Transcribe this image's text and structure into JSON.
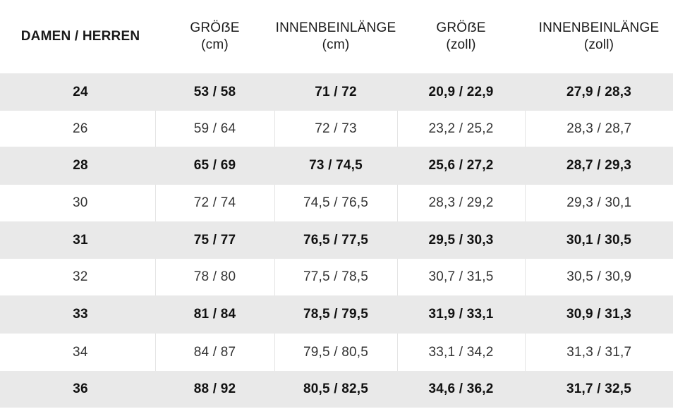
{
  "headers": [
    {
      "line1": "DAMEN / HERREN",
      "line2": ""
    },
    {
      "line1": "GRÖẞE",
      "line2": "(cm)"
    },
    {
      "line1": "INNENBEINLÄNGE",
      "line2": "(cm)"
    },
    {
      "line1": "GRÖẞE",
      "line2": "(zoll)"
    },
    {
      "line1": "INNENBEINLÄNGE",
      "line2": "(zoll)"
    }
  ],
  "rows": [
    {
      "size": "24",
      "groesse_cm": "53 / 58",
      "innenbein_cm": "71 / 72",
      "groesse_zoll": "20,9 / 22,9",
      "innenbein_zoll": "27,9 / 28,3"
    },
    {
      "size": "26",
      "groesse_cm": "59 / 64",
      "innenbein_cm": "72 / 73",
      "groesse_zoll": "23,2 / 25,2",
      "innenbein_zoll": "28,3 / 28,7"
    },
    {
      "size": "28",
      "groesse_cm": "65 / 69",
      "innenbein_cm": "73 / 74,5",
      "groesse_zoll": "25,6 / 27,2",
      "innenbein_zoll": "28,7 / 29,3"
    },
    {
      "size": "30",
      "groesse_cm": "72 / 74",
      "innenbein_cm": "74,5 / 76,5",
      "groesse_zoll": "28,3 / 29,2",
      "innenbein_zoll": "29,3 / 30,1"
    },
    {
      "size": "31",
      "groesse_cm": "75 / 77",
      "innenbein_cm": "76,5 / 77,5",
      "groesse_zoll": "29,5 / 30,3",
      "innenbein_zoll": "30,1 / 30,5"
    },
    {
      "size": "32",
      "groesse_cm": "78 / 80",
      "innenbein_cm": "77,5 / 78,5",
      "groesse_zoll": "30,7 / 31,5",
      "innenbein_zoll": "30,5 / 30,9"
    },
    {
      "size": "33",
      "groesse_cm": "81 / 84",
      "innenbein_cm": "78,5 / 79,5",
      "groesse_zoll": "31,9 / 33,1",
      "innenbein_zoll": "30,9 / 31,3"
    },
    {
      "size": "34",
      "groesse_cm": "84 / 87",
      "innenbein_cm": "79,5 / 80,5",
      "groesse_zoll": "33,1 / 34,2",
      "innenbein_zoll": "31,3 / 31,7"
    },
    {
      "size": "36",
      "groesse_cm": "88 / 92",
      "innenbein_cm": "80,5 / 82,5",
      "groesse_zoll": "34,6 / 36,2",
      "innenbein_zoll": "31,7 / 32,5"
    }
  ],
  "colors": {
    "shaded_row": "#e9e9e9",
    "plain_row": "#ffffff",
    "divider": "#e4e4e4",
    "text": "#111111"
  }
}
